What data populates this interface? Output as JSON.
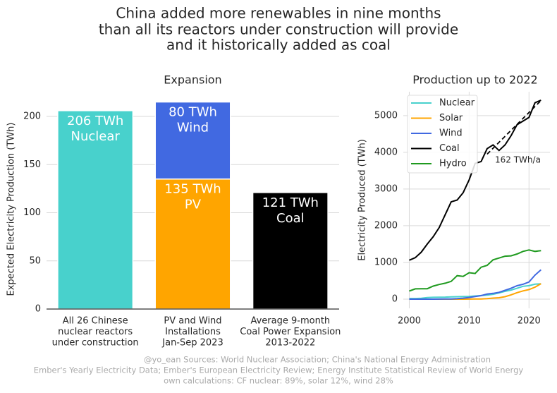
{
  "title": [
    "China added more renewables in nine months",
    "than all its reactors under construction will provide",
    "and it historically added as coal"
  ],
  "footer": [
    "@yo_ean Sources: World Nuclear Association; China's National Energy Administration",
    "Ember's Yearly Electricity Data; Ember's European Electricity Review; Energy Institute Statistical Review of World Energy",
    "own calculations: CF nuclear: 89%, solar 12%, wind 28%"
  ],
  "chart_data": [
    {
      "type": "bar",
      "stacked": true,
      "title": "Expansion",
      "ylabel": "Expected Electricity Production (TWh)",
      "categories": [
        [
          "All 26 Chinese",
          "nuclear reactors",
          "under construction"
        ],
        [
          "PV and Wind",
          "Installations",
          "Jan-Sep 2023"
        ],
        [
          "Average 9-month",
          "Coal Power Expansion",
          "2013-2022"
        ]
      ],
      "series": [
        {
          "color": "#48d1cc",
          "values": [
            206,
            null,
            null
          ],
          "value_labels": [
            [
              "206 TWh",
              "Nuclear"
            ],
            null,
            null
          ]
        },
        {
          "color": "#ffa500",
          "values": [
            null,
            135,
            null
          ],
          "value_labels": [
            null,
            [
              "135 TWh",
              "PV"
            ],
            null
          ]
        },
        {
          "color": "#4169e1",
          "values": [
            null,
            80,
            null
          ],
          "value_labels": [
            null,
            [
              "80 TWh",
              "Wind"
            ],
            null
          ]
        },
        {
          "color": "#000000",
          "values": [
            null,
            null,
            121
          ],
          "value_labels": [
            null,
            null,
            [
              "121 TWh",
              "Coal"
            ]
          ]
        }
      ],
      "ylim": [
        0,
        222
      ],
      "yticks": [
        0,
        50,
        100,
        150,
        200
      ],
      "grid": true
    },
    {
      "type": "line",
      "title": "Production up to 2022",
      "ylabel": "Electricity Produced (TWh)",
      "x": [
        2000,
        2001,
        2002,
        2003,
        2004,
        2005,
        2006,
        2007,
        2008,
        2009,
        2010,
        2011,
        2012,
        2013,
        2014,
        2015,
        2016,
        2017,
        2018,
        2019,
        2020,
        2021,
        2022
      ],
      "series": [
        {
          "name": "Nuclear",
          "color": "#48d1cc",
          "values": [
            17,
            17,
            25,
            43,
            50,
            53,
            55,
            62,
            68,
            70,
            74,
            86,
            97,
            112,
            133,
            171,
            213,
            248,
            295,
            349,
            366,
            408,
            418
          ]
        },
        {
          "name": "Solar",
          "color": "#ffa500",
          "values": [
            0,
            0,
            0,
            0,
            0,
            0,
            0,
            0,
            0,
            0,
            1,
            3,
            6,
            15,
            29,
            39,
            67,
            118,
            177,
            225,
            261,
            327,
            420
          ]
        },
        {
          "name": "Wind",
          "color": "#4169e1",
          "values": [
            0,
            0,
            0,
            0,
            0,
            2,
            4,
            6,
            13,
            27,
            45,
            70,
            96,
            140,
            158,
            186,
            241,
            295,
            366,
            406,
            467,
            655,
            800
          ]
        },
        {
          "name": "Coal",
          "color": "#000000",
          "values": [
            1060,
            1130,
            1280,
            1500,
            1700,
            1950,
            2300,
            2650,
            2700,
            2900,
            3250,
            3700,
            3750,
            4100,
            4200,
            4050,
            4200,
            4450,
            4750,
            4850,
            4950,
            5350,
            5420
          ]
        },
        {
          "name": "Hydro",
          "color": "#1f9a1f",
          "values": [
            220,
            280,
            285,
            285,
            355,
            400,
            435,
            485,
            640,
            620,
            720,
            700,
            870,
            920,
            1070,
            1120,
            1170,
            1180,
            1230,
            1300,
            1340,
            1300,
            1320
          ]
        }
      ],
      "trend": {
        "x": [
          2013,
          2022
        ],
        "values": [
          3950,
          5410
        ],
        "color": "#000000",
        "label": "162 TWh/a"
      },
      "xlim": [
        1999,
        2023.5
      ],
      "xticks": [
        2000,
        2010,
        2020
      ],
      "ylim": [
        -250,
        5650
      ],
      "yticks": [
        0,
        1000,
        2000,
        3000,
        4000,
        5000
      ],
      "grid": true,
      "legend": "upper left"
    }
  ]
}
